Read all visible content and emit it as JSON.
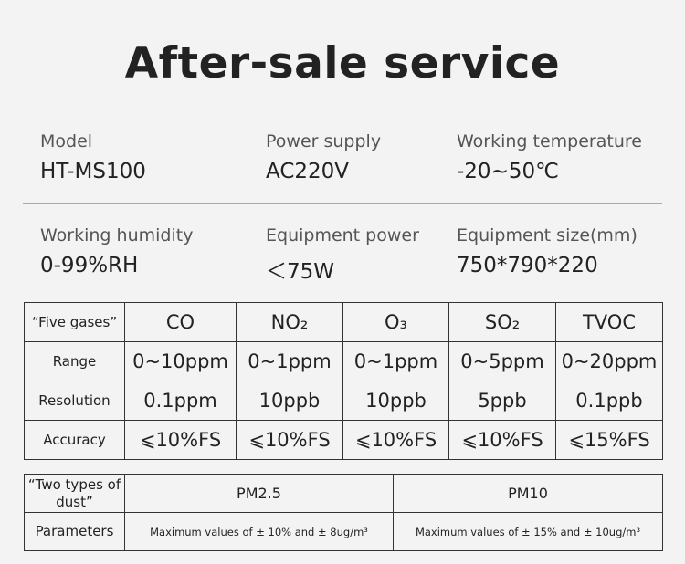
{
  "header": {
    "title": "After-sale service"
  },
  "specs": [
    {
      "label": "Model",
      "value": "HT-MS100"
    },
    {
      "label": "Power supply",
      "value": "AC220V"
    },
    {
      "label": "Working temperature",
      "value": "-20~50℃"
    },
    {
      "label": "Working humidity",
      "value": "0-99%RH"
    },
    {
      "label": "Equipment power",
      "value": "＜75W"
    },
    {
      "label": "Equipment size(mm)",
      "value": "750*790*220"
    }
  ],
  "gas_table": {
    "header": [
      "“Five gases”",
      "CO",
      "NO₂",
      "O₃",
      "SO₂",
      "TVOC"
    ],
    "rows": [
      [
        "Range",
        "0~10ppm",
        "0~1ppm",
        "0~1ppm",
        "0~5ppm",
        "0~20ppm"
      ],
      [
        "Resolution",
        "0.1ppm",
        "10ppb",
        "10ppb",
        "5ppb",
        "0.1ppb"
      ],
      [
        "Accuracy",
        "⩽10%FS",
        "⩽10%FS",
        "⩽10%FS",
        "⩽10%FS",
        "⩽15%FS"
      ]
    ]
  },
  "dust_table": {
    "header": [
      "“Two types of dust”",
      "PM2.5",
      "PM10"
    ],
    "rows": [
      [
        "Parameters",
        "Maximum values of ± 10% and ± 8ug/m³",
        "Maximum values of ± 15% and ± 10ug/m³"
      ]
    ]
  }
}
